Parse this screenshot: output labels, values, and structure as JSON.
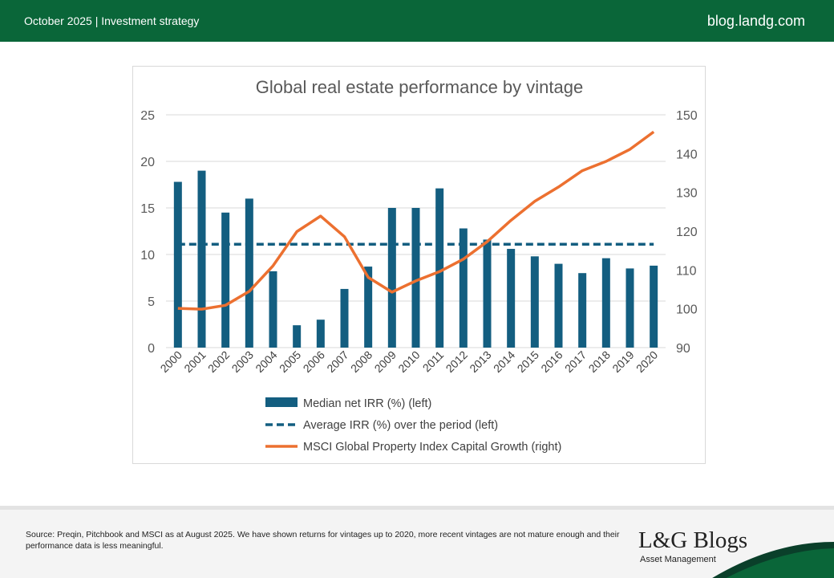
{
  "header": {
    "left": "October 2025 |  Investment strategy",
    "right": "blog.landg.com"
  },
  "chart_data": {
    "type": "bar+line",
    "title": "Global real estate performance by vintage",
    "categories": [
      "2000",
      "2001",
      "2002",
      "2003",
      "2004",
      "2005",
      "2006",
      "2007",
      "2008",
      "2009",
      "2010",
      "2011",
      "2012",
      "2013",
      "2014",
      "2015",
      "2016",
      "2017",
      "2018",
      "2019",
      "2020"
    ],
    "left_axis": {
      "range": [
        0,
        25
      ],
      "ticks": [
        0,
        5,
        10,
        15,
        20,
        25
      ]
    },
    "right_axis": {
      "range": [
        90,
        150
      ],
      "ticks": [
        90,
        100,
        110,
        120,
        130,
        140,
        150
      ]
    },
    "grid": true,
    "legend_placement": "bottom",
    "series": [
      {
        "name": "Median net IRR (%)  (left)",
        "type": "bar",
        "axis": "left",
        "color": "#135e80",
        "values": [
          17.8,
          19.0,
          14.5,
          16.0,
          8.2,
          2.4,
          3.0,
          6.3,
          8.7,
          15.0,
          15.0,
          17.1,
          12.8,
          11.6,
          10.6,
          9.8,
          9.0,
          8.0,
          9.6,
          8.5,
          8.8
        ]
      },
      {
        "name": "Average IRR (%) over the period (left)",
        "type": "line-dashed",
        "axis": "left",
        "color": "#135e80",
        "values": [
          11.1,
          11.1,
          11.1,
          11.1,
          11.1,
          11.1,
          11.1,
          11.1,
          11.1,
          11.1,
          11.1,
          11.1,
          11.1,
          11.1,
          11.1,
          11.1,
          11.1,
          11.1,
          11.1,
          11.1,
          11.1
        ]
      },
      {
        "name": "MSCI Global Property Index Capital Growth (right)",
        "type": "line",
        "axis": "right",
        "color": "#ec7030",
        "values": [
          100.1,
          99.9,
          100.9,
          104.5,
          111.1,
          119.9,
          123.9,
          118.6,
          108.1,
          104.3,
          107.2,
          109.6,
          112.8,
          117.3,
          122.8,
          127.7,
          131.4,
          135.6,
          138.0,
          141.1,
          145.6
        ]
      }
    ]
  },
  "footer": {
    "source": "Source: Preqin, Pitchbook and MSCI as at August 2025. We have shown returns for vintages up to 2020, more recent vintages are not mature enough and their performance data is less meaningful.",
    "logo": "L&G Blogs",
    "logo_sub": "Asset Management"
  }
}
